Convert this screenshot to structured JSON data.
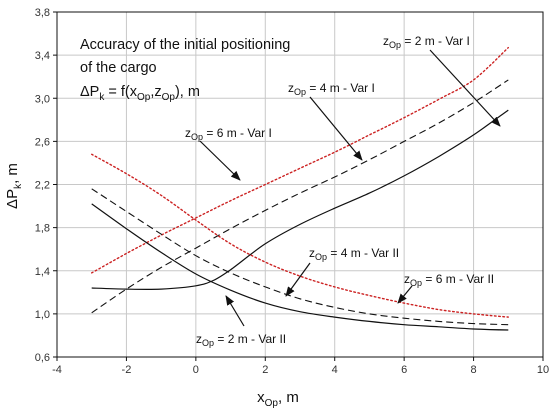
{
  "chart_data": {
    "type": "line",
    "title_lines": [
      "Accuracy of the initial positioning",
      "of the cargo"
    ],
    "formula": {
      "prefix": "ΔP",
      "prefix_sub": "k",
      "mid": " = f(x",
      "x_sub": "Op",
      "comma": ",z",
      "z_sub": "Op",
      "suffix": "), m"
    },
    "xlabel": {
      "main": "x",
      "sub": "Op",
      "suffix": ", m"
    },
    "ylabel": {
      "main": "ΔP",
      "sub": "k",
      "suffix": ", m"
    },
    "xlim": [
      -4,
      10
    ],
    "ylim": [
      0.6,
      3.8
    ],
    "xticks": [
      "-4",
      "-2",
      "0",
      "2",
      "4",
      "6",
      "8",
      "10"
    ],
    "yticks": [
      "0,6",
      "1,0",
      "1,4",
      "1,8",
      "2,2",
      "2,6",
      "3,0",
      "3,4",
      "3,8"
    ],
    "grid": true,
    "colors": {
      "red_dotted": "#cc2222",
      "black": "#111111",
      "grid": "#c8c8c8"
    },
    "series": [
      {
        "name": "zOp = 6 m - Var I",
        "style": "dotted-red",
        "x": [
          -3,
          -2,
          -1,
          0,
          1,
          2,
          3,
          4,
          5,
          6,
          7,
          8,
          9
        ],
        "y": [
          1.38,
          1.56,
          1.73,
          1.89,
          2.05,
          2.2,
          2.35,
          2.5,
          2.66,
          2.82,
          2.99,
          3.17,
          3.47
        ]
      },
      {
        "name": "zOp = 4 m - Var I",
        "style": "dashed-black",
        "x": [
          -3,
          -2,
          -1,
          0,
          1,
          2,
          3,
          4,
          5,
          6,
          7,
          8,
          9
        ],
        "y": [
          1.01,
          1.23,
          1.43,
          1.61,
          1.79,
          1.96,
          2.12,
          2.27,
          2.43,
          2.6,
          2.77,
          2.96,
          3.17
        ]
      },
      {
        "name": "zOp = 2 m - Var I",
        "style": "solid-black",
        "x": [
          -3,
          -2,
          -1,
          0,
          0.5,
          1,
          2,
          3,
          4,
          5,
          6,
          7,
          8,
          9
        ],
        "y": [
          1.24,
          1.23,
          1.23,
          1.26,
          1.31,
          1.41,
          1.65,
          1.83,
          1.98,
          2.12,
          2.28,
          2.46,
          2.66,
          2.89
        ]
      },
      {
        "name": "zOp = 6 m - Var II",
        "style": "dotted-red",
        "x": [
          -3,
          -2,
          -1,
          0,
          1,
          2,
          3,
          4,
          5,
          6,
          7,
          8,
          9
        ],
        "y": [
          2.48,
          2.3,
          2.1,
          1.87,
          1.65,
          1.48,
          1.35,
          1.25,
          1.17,
          1.1,
          1.04,
          1.0,
          0.97
        ]
      },
      {
        "name": "zOp = 4 m - Var II",
        "style": "dashed-black",
        "x": [
          -3,
          -2,
          -1,
          0,
          1,
          2,
          3,
          4,
          5,
          6,
          7,
          8,
          9
        ],
        "y": [
          2.16,
          1.95,
          1.74,
          1.54,
          1.38,
          1.25,
          1.14,
          1.06,
          1.0,
          0.96,
          0.93,
          0.91,
          0.9
        ]
      },
      {
        "name": "zOp = 2 m - Var II",
        "style": "solid-black",
        "x": [
          -3,
          -2,
          -1,
          0,
          1,
          2,
          3,
          4,
          5,
          6,
          7,
          8,
          9
        ],
        "y": [
          2.02,
          1.79,
          1.57,
          1.37,
          1.22,
          1.1,
          1.02,
          0.97,
          0.93,
          0.9,
          0.88,
          0.86,
          0.85
        ]
      }
    ],
    "annotations": [
      {
        "z": "z",
        "sub": "Op",
        "rest": " = 2 m - Var I"
      },
      {
        "z": "z",
        "sub": "Op",
        "rest": " = 4 m - Var I"
      },
      {
        "z": "z",
        "sub": "Op",
        "rest": " = 6 m - Var I"
      },
      {
        "z": "z",
        "sub": "Op",
        "rest": " = 4 m - Var II"
      },
      {
        "z": "z",
        "sub": "Op",
        "rest": " = 6 m - Var II"
      },
      {
        "z": "z",
        "sub": "Op",
        "rest": " = 2 m - Var II"
      }
    ]
  }
}
